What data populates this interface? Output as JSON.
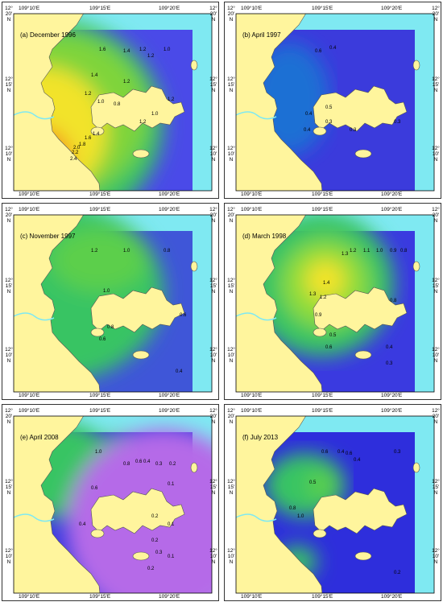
{
  "panels": [
    {
      "title": "(a) December 1996",
      "contours": [
        "1.6",
        "1.4",
        "1.2",
        "1.0",
        "0.8",
        "1.4",
        "1.2",
        "1.2",
        "1.0",
        "1.2",
        "1.0",
        "1.4",
        "1.6",
        "1.8",
        "2.0",
        "2.2",
        "2.4",
        "1.2",
        "1.2"
      ]
    },
    {
      "title": "(b) April 1997",
      "contours": [
        "0.6",
        "0.4",
        "0.5",
        "0.4",
        "0.3",
        "0.3",
        "0.3",
        "0.4"
      ]
    },
    {
      "title": "(c) November 1997",
      "contours": [
        "1.2",
        "1.0",
        "0.8",
        "1.0",
        "0.8",
        "0.6",
        "0.4",
        "0.6"
      ]
    },
    {
      "title": "(d) March 1998",
      "contours": [
        "1.4",
        "1.3",
        "1.2",
        "1.1",
        "1.0",
        "0.9",
        "0.8",
        "1.3",
        "1.2",
        "0.9",
        "0.8",
        "0.4",
        "0.3",
        "0.6",
        "0.5"
      ]
    },
    {
      "title": "(e) April 2008",
      "contours": [
        "1.0",
        "0.8",
        "0.6",
        "0.4",
        "0.3",
        "0.2",
        "0.1",
        "0.6",
        "0.4",
        "0.2",
        "0.1",
        "0.2",
        "0.3",
        "0.2",
        "0.1"
      ]
    },
    {
      "title": "(f) July 2013",
      "contours": [
        "0.6",
        "0.4",
        "0.6",
        "0.4",
        "0.3",
        "0.5",
        "0.8",
        "1.0",
        "0.2"
      ]
    }
  ],
  "axes": {
    "lon_ticks": [
      "109°10'E",
      "109°15'E",
      "109°20'E"
    ],
    "lat_ticks": [
      {
        "deg": "12°",
        "min": "20'",
        "hemi": "N"
      },
      {
        "deg": "12°",
        "min": "15'",
        "hemi": "N"
      },
      {
        "deg": "12°",
        "min": "10'",
        "hemi": "N"
      }
    ]
  },
  "colors": {
    "land": "#fff59d",
    "ocean_edge": "#7fe9f2",
    "deep": "#2d2df0",
    "mid": "#1f6fd4",
    "green": "#39c463",
    "yellow": "#f2e32b",
    "orange": "#f28a1d",
    "red": "#d9261b",
    "violet": "#b56ae8"
  }
}
